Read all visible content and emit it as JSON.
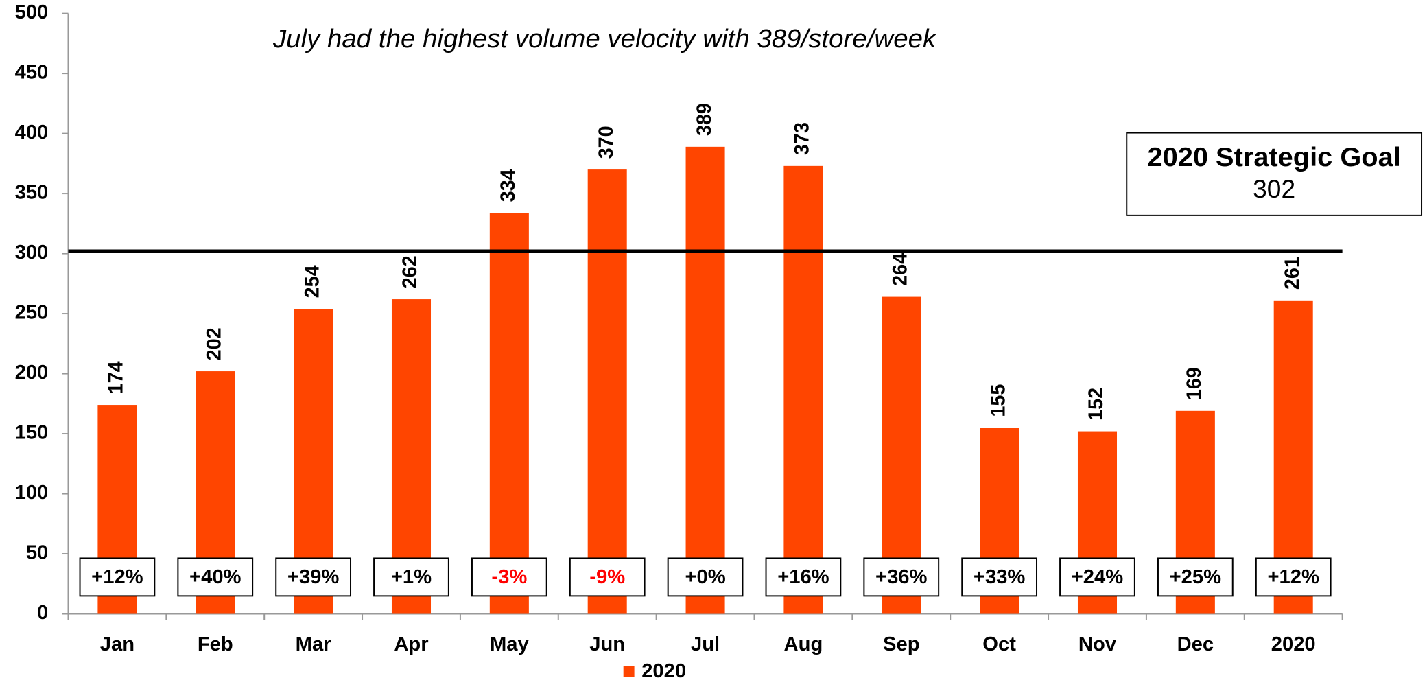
{
  "chart_data": {
    "type": "bar",
    "annotation": "July had the highest volume velocity with 389/store/week",
    "categories": [
      "Jan",
      "Feb",
      "Mar",
      "Apr",
      "May",
      "Jun",
      "Jul",
      "Aug",
      "Sep",
      "Oct",
      "Nov",
      "Dec",
      "2020"
    ],
    "series": [
      {
        "name": "2020",
        "color": "#ff4500",
        "values": [
          174,
          202,
          254,
          262,
          334,
          370,
          389,
          373,
          264,
          155,
          152,
          169,
          261
        ]
      }
    ],
    "changes": {
      "values": [
        12,
        40,
        39,
        1,
        -3,
        -9,
        0,
        16,
        36,
        33,
        24,
        25,
        12
      ],
      "labels": [
        "+12%",
        "+40%",
        "+39%",
        "+1%",
        "-3%",
        "-9%",
        "+0%",
        "+16%",
        "+36%",
        "+33%",
        "+24%",
        "+25%",
        "+12%"
      ],
      "negative_color": "#ff0000"
    },
    "goal": {
      "label": "2020 Strategic Goal",
      "value": 302
    },
    "ylim": [
      0,
      500
    ],
    "yticks": [
      0,
      50,
      100,
      150,
      200,
      250,
      300,
      350,
      400,
      450,
      500
    ],
    "legend": "bottom"
  }
}
